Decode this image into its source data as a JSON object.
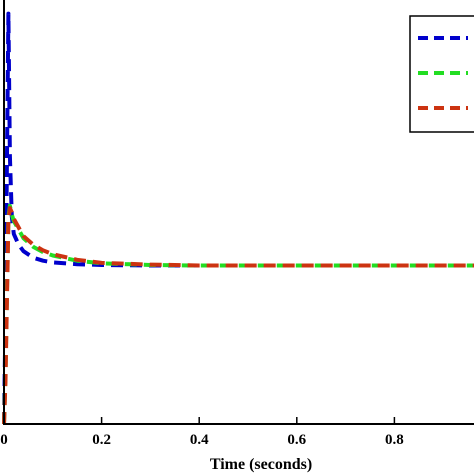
{
  "chart_data": {
    "type": "line",
    "title": "",
    "xlabel": "Time (seconds)",
    "ylabel": "",
    "xlim": [
      0,
      1
    ],
    "ylim": [
      0,
      1
    ],
    "x_ticks": [
      "0",
      "0.2",
      "0.4",
      "0.6",
      "0.8"
    ],
    "x_tick_values": [
      0,
      0.2,
      0.4,
      0.6,
      0.8
    ],
    "grid": false,
    "legend_position": "top-right",
    "series": [
      {
        "color": "#0000cc",
        "x": [
          0,
          0.003,
          0.006,
          0.009,
          0.012,
          0.016,
          0.02,
          0.03,
          0.04,
          0.06,
          0.08,
          0.1,
          0.15,
          0.2,
          0.3,
          0.4,
          0.5,
          0.6,
          0.7,
          0.8,
          0.9,
          0.98
        ],
        "y": [
          0.0,
          0.25,
          0.6,
          0.95,
          0.62,
          0.48,
          0.44,
          0.415,
          0.4,
          0.385,
          0.378,
          0.374,
          0.37,
          0.368,
          0.367,
          0.367,
          0.367,
          0.367,
          0.367,
          0.367,
          0.367,
          0.367
        ]
      },
      {
        "color": "#22dd22",
        "x": [
          0,
          0.003,
          0.006,
          0.009,
          0.012,
          0.016,
          0.02,
          0.03,
          0.04,
          0.06,
          0.08,
          0.1,
          0.15,
          0.2,
          0.3,
          0.4,
          0.5,
          0.6,
          0.7,
          0.8,
          0.9,
          0.98
        ],
        "y": [
          0.0,
          0.12,
          0.3,
          0.48,
          0.505,
          0.485,
          0.47,
          0.45,
          0.43,
          0.41,
          0.398,
          0.39,
          0.378,
          0.372,
          0.368,
          0.367,
          0.367,
          0.367,
          0.367,
          0.367,
          0.367,
          0.367
        ]
      },
      {
        "color": "#cc3311",
        "x": [
          0,
          0.003,
          0.006,
          0.009,
          0.012,
          0.016,
          0.02,
          0.03,
          0.04,
          0.06,
          0.08,
          0.1,
          0.15,
          0.2,
          0.3,
          0.4,
          0.5,
          0.6,
          0.7,
          0.8,
          0.9,
          0.98
        ],
        "y": [
          0.0,
          0.1,
          0.28,
          0.47,
          0.5,
          0.49,
          0.475,
          0.455,
          0.435,
          0.415,
          0.402,
          0.393,
          0.38,
          0.373,
          0.369,
          0.367,
          0.367,
          0.367,
          0.367,
          0.367,
          0.367,
          0.367
        ]
      }
    ]
  }
}
